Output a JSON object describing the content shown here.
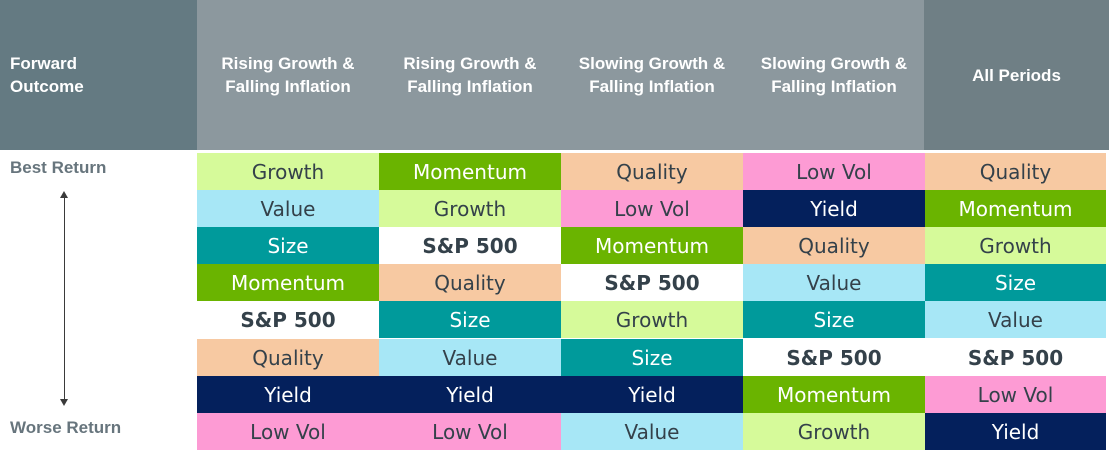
{
  "header": {
    "first": "Forward Outcome",
    "columns": [
      "Rising Growth & Falling Inflation",
      "Rising Growth & Falling Inflation",
      "Slowing Growth & Falling Inflation",
      "Slowing Growth & Falling Inflation",
      "All Periods"
    ]
  },
  "axis": {
    "top": "Best Return",
    "bottom": "Worse Return"
  },
  "styles": {
    "Growth": {
      "bg": "#d6fa9a",
      "fg": "#34414a"
    },
    "Value": {
      "bg": "#a7e7f6",
      "fg": "#34414a"
    },
    "Size": {
      "bg": "#009a9b",
      "fg": "#ffffff"
    },
    "Momentum": {
      "bg": "#6ab400",
      "fg": "#ffffff"
    },
    "S&P 500": {
      "bg": "#ffffff",
      "fg": "#34414a",
      "bold": true
    },
    "Quality": {
      "bg": "#f7c9a2",
      "fg": "#34414a"
    },
    "Yield": {
      "bg": "#04205c",
      "fg": "#ffffff"
    },
    "Low Vol": {
      "bg": "#fd9bd4",
      "fg": "#34414a"
    }
  },
  "columns": [
    [
      "Growth",
      "Value",
      "Size",
      "Momentum",
      "S&P 500",
      "Quality",
      "Yield",
      "Low Vol"
    ],
    [
      "Momentum",
      "Growth",
      "S&P 500",
      "Quality",
      "Size",
      "Value",
      "Yield",
      "Low Vol"
    ],
    [
      "Quality",
      "Low Vol",
      "Momentum",
      "S&P 500",
      "Growth",
      "Size",
      "Yield",
      "Value"
    ],
    [
      "Low Vol",
      "Yield",
      "Quality",
      "Value",
      "Size",
      "S&P 500",
      "Momentum",
      "Growth"
    ],
    [
      "Quality",
      "Momentum",
      "Growth",
      "Size",
      "Value",
      "S&P 500",
      "Low Vol",
      "Yield"
    ]
  ]
}
